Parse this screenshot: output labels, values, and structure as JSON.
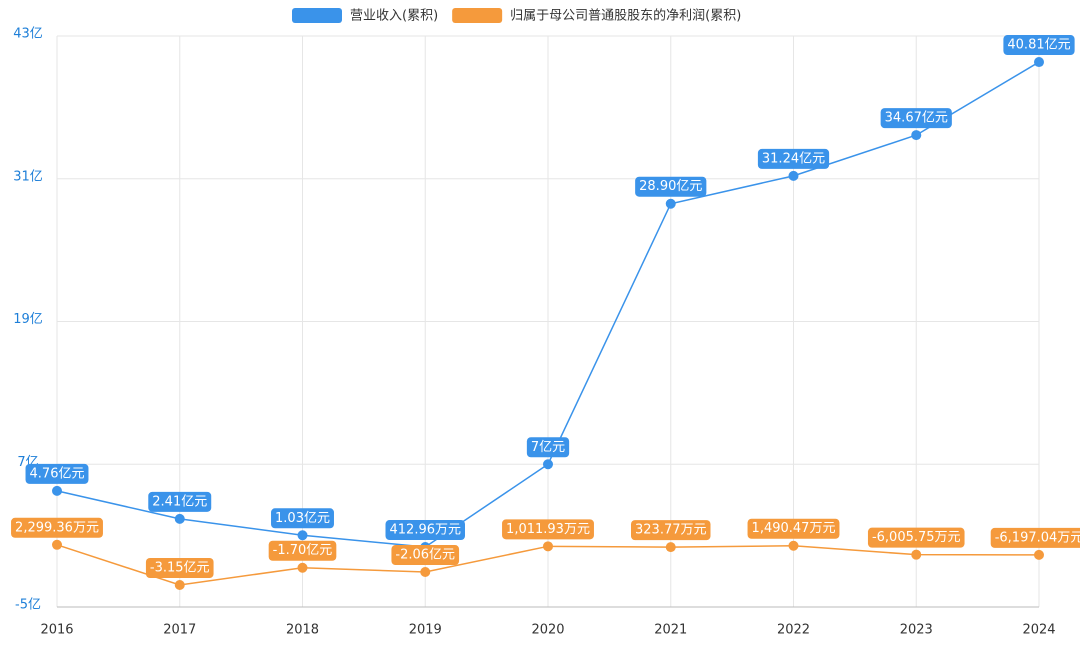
{
  "chart_data": {
    "type": "line",
    "categories": [
      "2016",
      "2017",
      "2018",
      "2019",
      "2020",
      "2021",
      "2022",
      "2023",
      "2024"
    ],
    "series": [
      {
        "name": "营业收入(累积)",
        "color": "#3a93ea",
        "values": [
          4.76,
          2.41,
          1.03,
          0.041296,
          7,
          28.9,
          31.24,
          34.67,
          40.81
        ],
        "value_labels": [
          "4.76亿元",
          "2.41亿元",
          "1.03亿元",
          "412.96万元",
          "7亿元",
          "28.90亿元",
          "31.24亿元",
          "34.67亿元",
          "40.81亿元"
        ]
      },
      {
        "name": "归属于母公司普通股股东的净利润(累积)",
        "color": "#f59a3c",
        "values": [
          0.229936,
          -3.15,
          -1.7,
          -2.06,
          0.101193,
          0.032377,
          0.149047,
          -0.600575,
          -0.619704
        ],
        "value_labels": [
          "2,299.36万元",
          "-3.15亿元",
          "-1.70亿元",
          "-2.06亿元",
          "1,011.93万元",
          "323.77万元",
          "1,490.47万元",
          "-6,005.75万元",
          "-6,197.04万元"
        ]
      }
    ],
    "ylim": [
      -5,
      43
    ],
    "yticks": [
      {
        "value": -5,
        "label": "-5亿"
      },
      {
        "value": 7,
        "label": "7亿"
      },
      {
        "value": 19,
        "label": "19亿"
      },
      {
        "value": 31,
        "label": "31亿"
      },
      {
        "value": 43,
        "label": "43亿"
      }
    ],
    "grid": true
  }
}
